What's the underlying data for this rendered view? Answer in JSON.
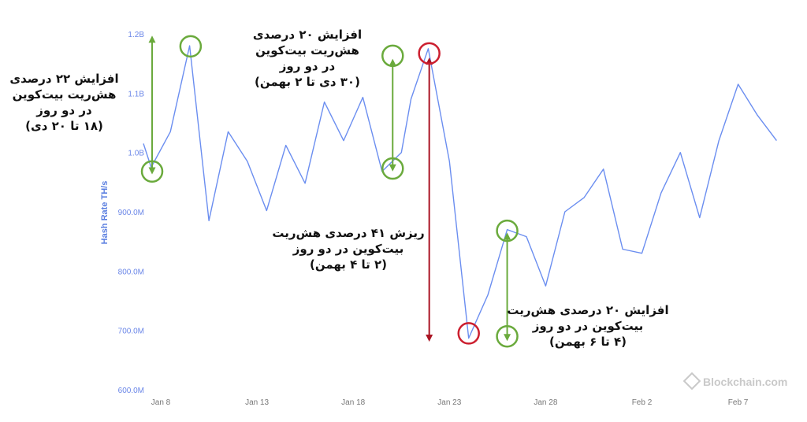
{
  "chart_data": {
    "type": "line",
    "ylabel": "Hash Rate TH/s",
    "yticks": [
      "1.2B",
      "1.1B",
      "1.0B",
      "900.0M",
      "800.0M",
      "700.0M",
      "600.0M"
    ],
    "ylim": [
      600000000,
      1200000000
    ],
    "xticks": [
      {
        "label": "Jan 8",
        "day": 8
      },
      {
        "label": "Jan 13",
        "day": 13
      },
      {
        "label": "Jan 18",
        "day": 18
      },
      {
        "label": "Jan 23",
        "day": 23
      },
      {
        "label": "Jan 28",
        "day": 28
      },
      {
        "label": "Feb 2",
        "day": 33
      },
      {
        "label": "Feb 7",
        "day": 38
      }
    ],
    "series": [
      {
        "color": "#6b8ef0",
        "x": [
          7.1,
          7.5,
          8.5,
          9.5,
          10.5,
          11.5,
          12.5,
          13.5,
          14.5,
          15.5,
          16.5,
          17.5,
          18.5,
          19.5,
          20.5,
          21.0,
          21.9,
          23.0,
          24.0,
          25.0,
          26.0,
          27.0,
          28.0,
          29.0,
          30.0,
          31.0,
          32.0,
          33.0,
          34.0,
          35.0,
          36.0,
          37.0,
          38.0,
          39.0,
          40.0
        ],
        "y": [
          1015000000,
          975000000,
          1035000000,
          1180000000,
          885000000,
          1035000000,
          985000000,
          902000000,
          1012000000,
          948000000,
          1085000000,
          1020000000,
          1093000000,
          968000000,
          1000000000,
          1090000000,
          1175000000,
          985000000,
          687000000,
          760000000,
          870000000,
          858000000,
          775000000,
          900000000,
          924000000,
          972000000,
          837000000,
          830000000,
          932000000,
          1000000000,
          890000000,
          1020000000,
          1115000000,
          1063000000,
          1020000000
        ]
      }
    ],
    "markers": [
      {
        "day": 7.55,
        "value": 968000000,
        "color": "#6aaa3c"
      },
      {
        "day": 9.55,
        "value": 1179000000,
        "color": "#6aaa3c"
      },
      {
        "day": 20.05,
        "value": 1163000000,
        "color": "#6aaa3c"
      },
      {
        "day": 20.05,
        "value": 973000000,
        "color": "#6aaa3c"
      },
      {
        "day": 21.95,
        "value": 1167000000,
        "color": "#cc1f2f"
      },
      {
        "day": 24.0,
        "value": 695000000,
        "color": "#cc1f2f"
      },
      {
        "day": 26.0,
        "value": 868000000,
        "color": "#6aaa3c"
      },
      {
        "day": 26.0,
        "value": 690000000,
        "color": "#6aaa3c"
      }
    ],
    "arrows": [
      {
        "day": 7.55,
        "from": 963000000,
        "to": 1197000000,
        "color": "#6aaa3c"
      },
      {
        "day": 20.05,
        "from": 1158000000,
        "to": 968000000,
        "color": "#6aaa3c"
      },
      {
        "day": 21.95,
        "from": 1160000000,
        "to": 681000000,
        "color": "#aa1423"
      },
      {
        "day": 26.0,
        "from": 865000000,
        "to": 682000000,
        "color": "#6aaa3c"
      }
    ],
    "annotations": [
      "افزایش ۲۲ درصدی\nهش‌ریت بیت‌کوین\nدر دو روز\n(۱۸ تا ۲۰ دی)",
      "افزایش ۲۰ درصدی\nهش‌ریت بیت‌کوین\nدر دو روز\n(۳۰ دی تا ۲ بهمن)",
      "ریزش ۴۱ درصدی هش‌ریت\nبیت‌کوین در دو روز\n(۲ تا ۴ بهمن)",
      "افزایش ۲۰ درصدی هش‌ریت\nبیت‌کوین در دو روز\n(۴ تا ۶ بهمن)"
    ],
    "watermark": "Blockchain.com"
  }
}
